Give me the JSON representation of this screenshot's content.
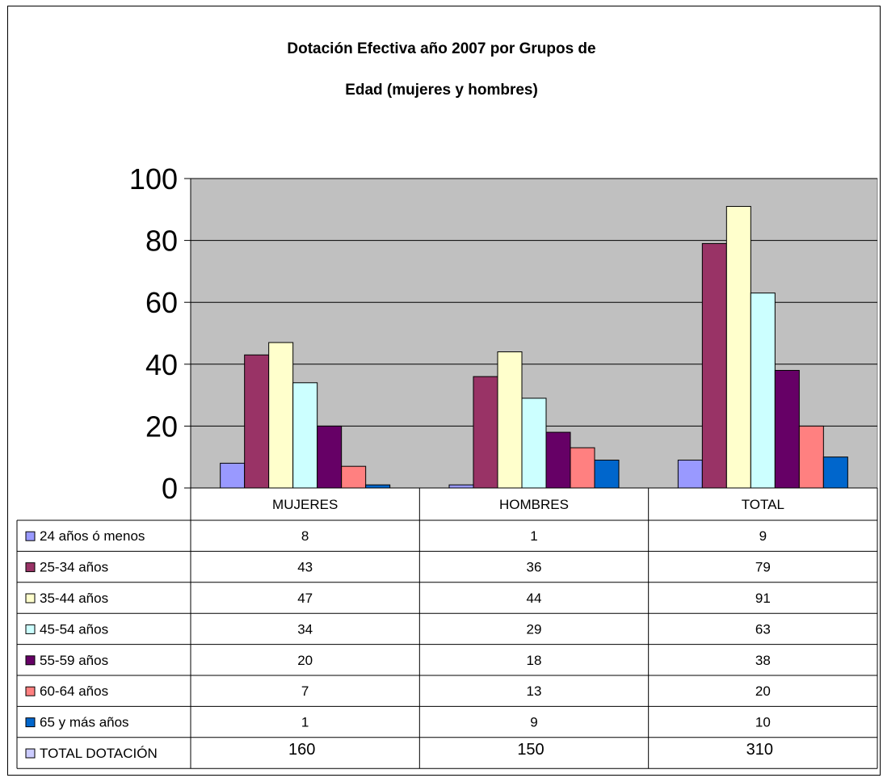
{
  "chart_data": {
    "type": "bar",
    "title": "Dotación Efectiva año 2007 por Grupos de Edad (mujeres y hombres)",
    "title_lines": [
      "Dotación Efectiva año 2007 por Grupos de",
      "Edad (mujeres y hombres)"
    ],
    "categories": [
      "MUJERES",
      "HOMBRES",
      "TOTAL"
    ],
    "ylim": [
      0,
      100
    ],
    "yticks": [
      0,
      20,
      40,
      60,
      80,
      100
    ],
    "grid": true,
    "legend": "data-table",
    "series": [
      {
        "name": "24 años ó menos",
        "values": [
          8,
          1,
          9
        ],
        "color": "#9999FF"
      },
      {
        "name": "25-34 años",
        "values": [
          43,
          36,
          79
        ],
        "color": "#993366"
      },
      {
        "name": "35-44 años",
        "values": [
          47,
          44,
          91
        ],
        "color": "#FFFFCC"
      },
      {
        "name": "45-54 años",
        "values": [
          34,
          29,
          63
        ],
        "color": "#CCFFFF"
      },
      {
        "name": "55-59 años",
        "values": [
          20,
          18,
          38
        ],
        "color": "#660066"
      },
      {
        "name": "60-64 años",
        "values": [
          7,
          13,
          20
        ],
        "color": "#FF8080"
      },
      {
        "name": "65 y más años",
        "values": [
          1,
          9,
          10
        ],
        "color": "#0066CC"
      }
    ],
    "table_total": {
      "name": "TOTAL DOTACIÓN",
      "values": [
        160,
        150,
        310
      ],
      "color": "#CCCCFF"
    }
  },
  "colors": {
    "plot_background": "#C0C0C0",
    "gridline": "#000000"
  }
}
